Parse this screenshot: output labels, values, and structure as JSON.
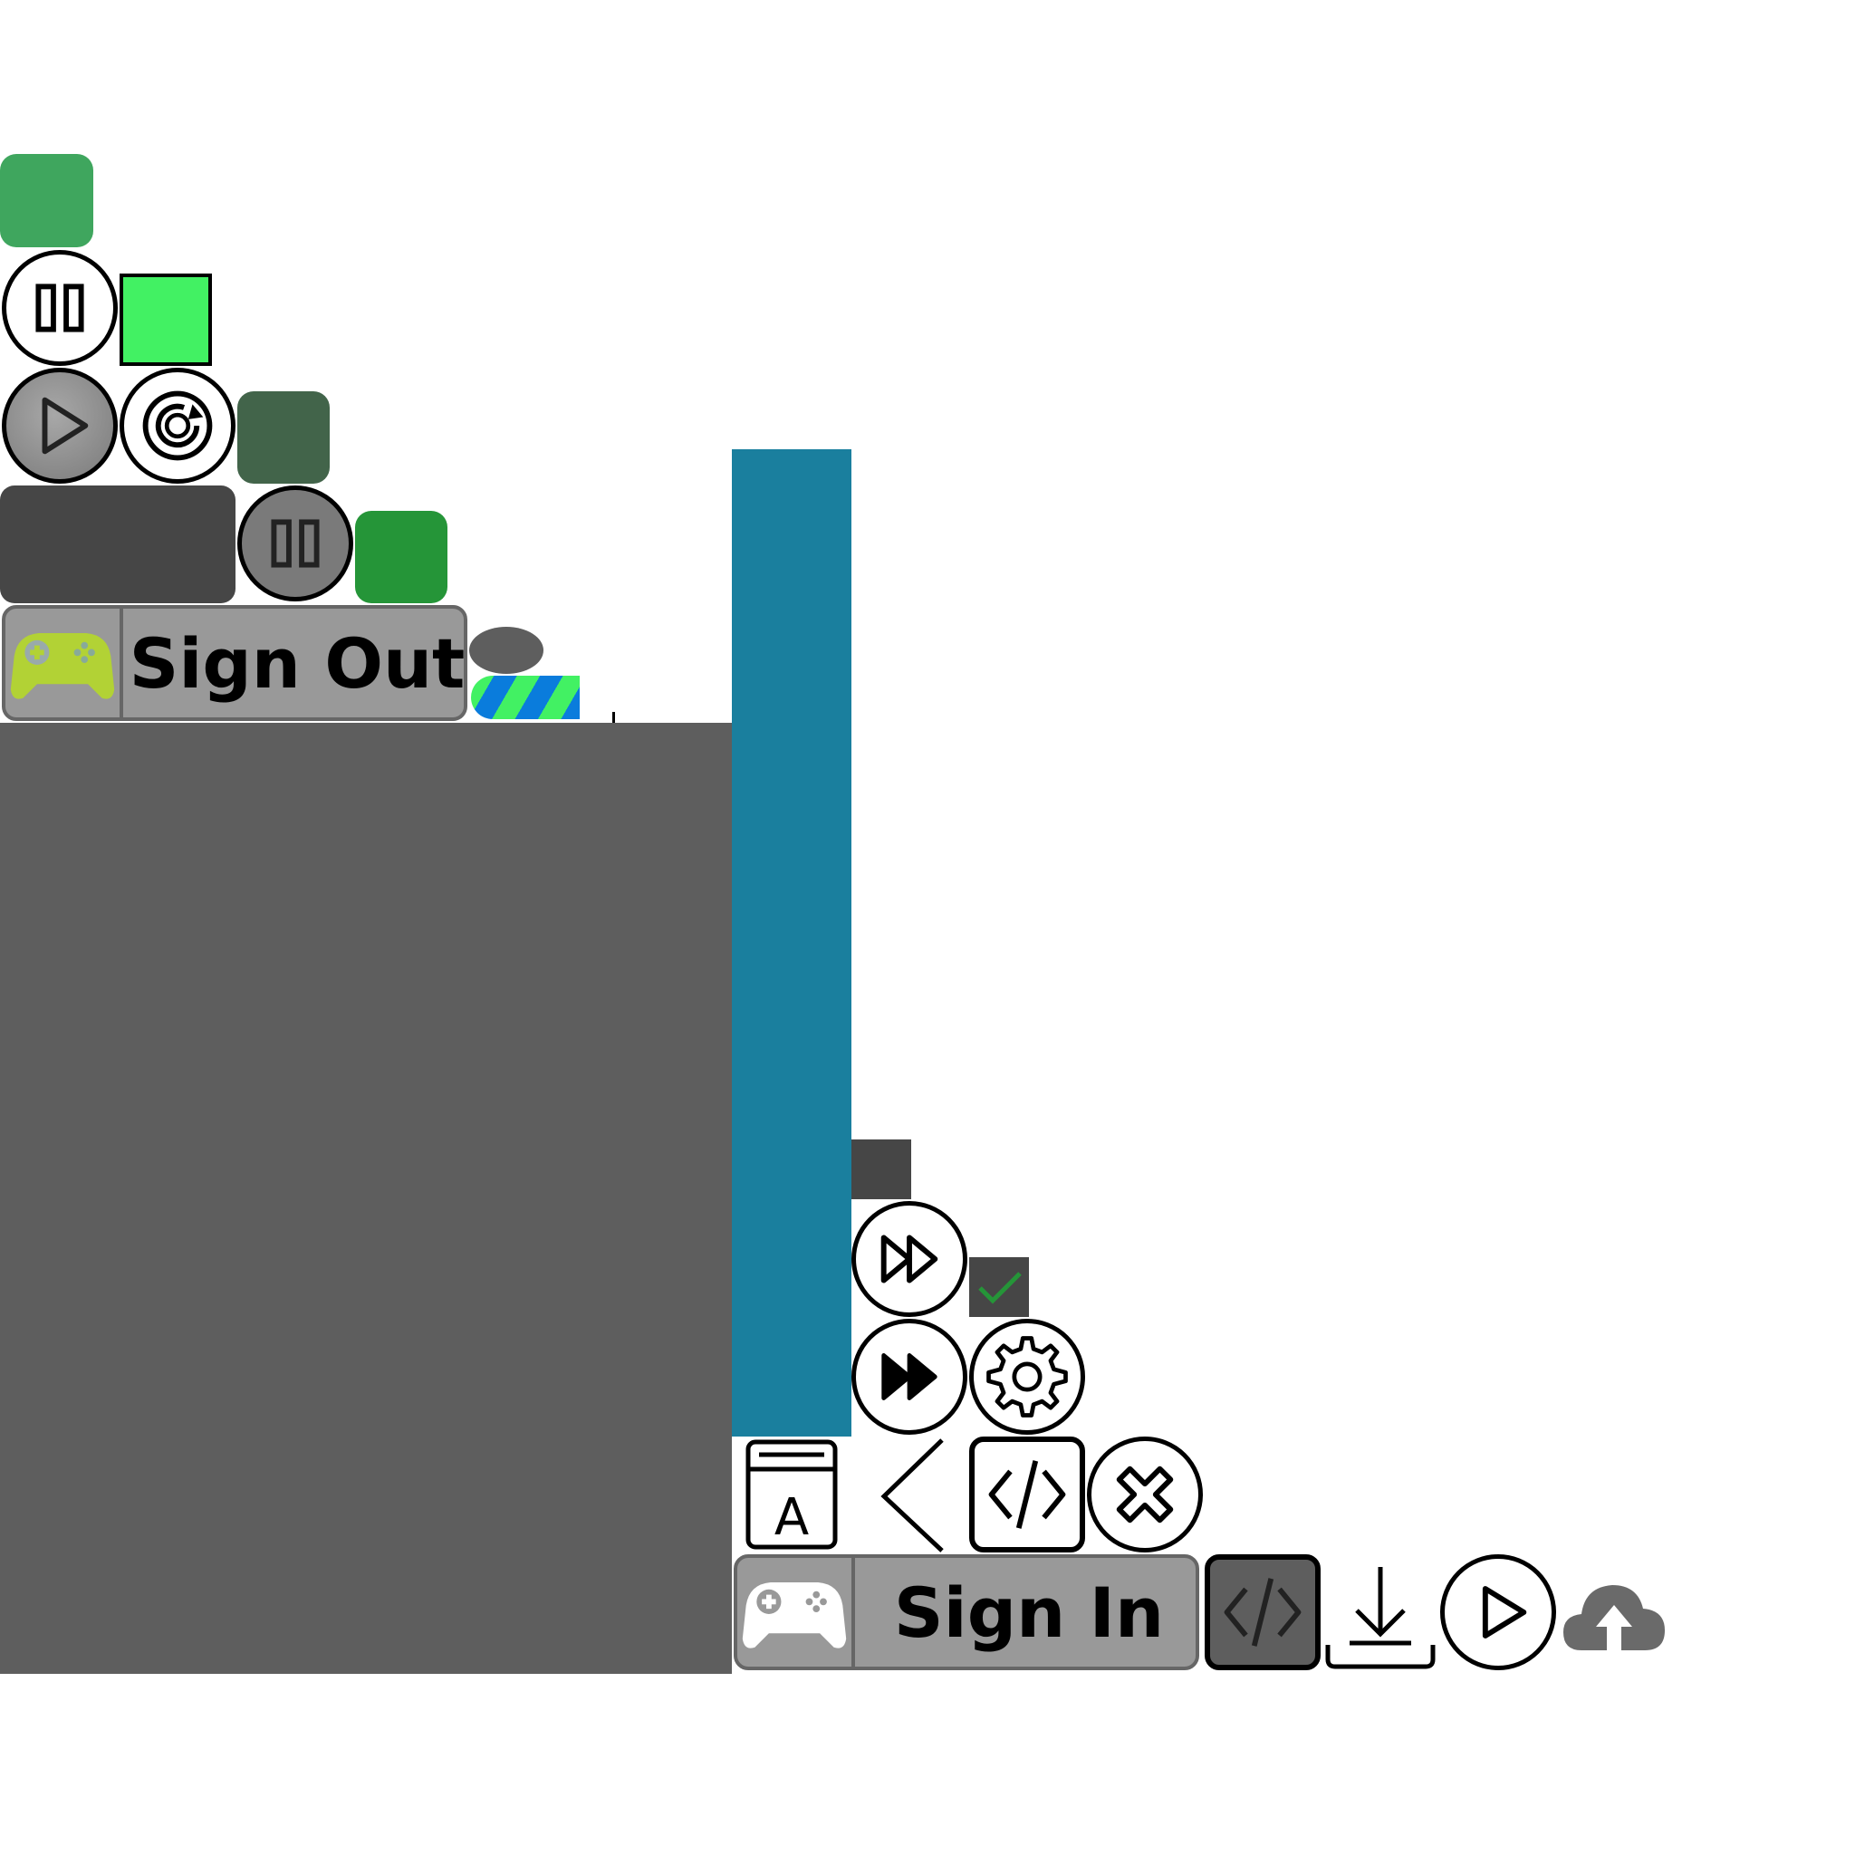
{
  "buttons": {
    "sign_out_label": "Sign Out",
    "sign_in_label": "Sign In"
  },
  "icons": [
    "pause-icon",
    "play-icon",
    "restart-icon",
    "pause-icon-gray",
    "gamepad-icon",
    "fast-forward-outline-icon",
    "check-icon",
    "fast-forward-solid-icon",
    "gear-icon",
    "font-icon",
    "chevron-left-icon",
    "code-icon",
    "close-icon",
    "code-icon-dark",
    "download-icon",
    "play-icon-outline",
    "cloud-upload-icon"
  ],
  "colors": {
    "green_tile_1": "#3FA65E",
    "green_tile_bright": "#42F163",
    "green_tile_dark": "#42644A",
    "green_tile_3": "#259538",
    "panel_dark": "#464646",
    "panel_gray": "#5E5E5E",
    "teal_bar": "#1A7F9E",
    "gamepad_lime": "#B2D235",
    "button_gray": "#999999",
    "stripe_blue": "#0A7CDC",
    "stripe_green": "#42F163"
  }
}
